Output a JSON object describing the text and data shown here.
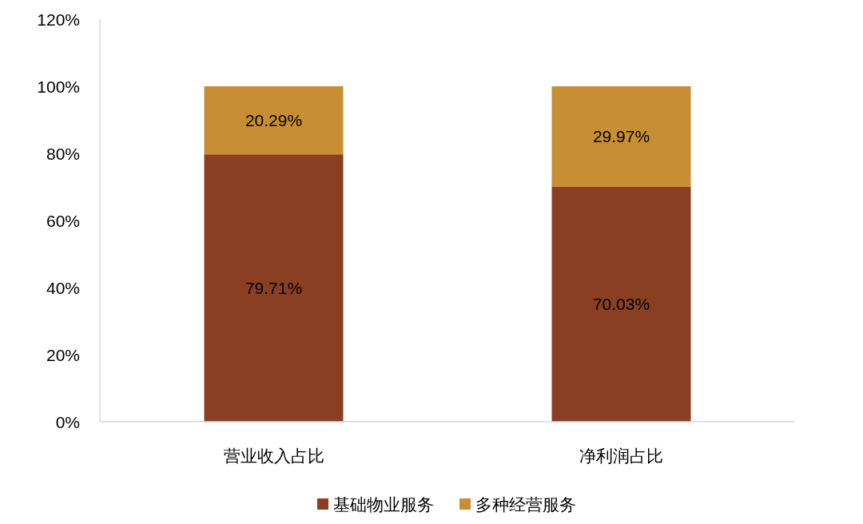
{
  "chart_data": {
    "type": "bar",
    "stacked": true,
    "categories": [
      "营业收入占比",
      "净利润占比"
    ],
    "series": [
      {
        "name": "基础物业服务",
        "color": "#8b3f22",
        "values": [
          79.71,
          70.03
        ],
        "value_labels": [
          "79.71%",
          "70.03%"
        ]
      },
      {
        "name": "多种经营服务",
        "color": "#c88e33",
        "values": [
          20.29,
          29.97
        ],
        "value_labels": [
          "20.29%",
          "29.97%"
        ]
      }
    ],
    "ylim": [
      0,
      120
    ],
    "yticks": [
      {
        "value": 0,
        "label": "0%"
      },
      {
        "value": 20,
        "label": "20%"
      },
      {
        "value": 40,
        "label": "40%"
      },
      {
        "value": 60,
        "label": "60%"
      },
      {
        "value": 80,
        "label": "80%"
      },
      {
        "value": 100,
        "label": "100%"
      },
      {
        "value": 120,
        "label": "120%"
      }
    ],
    "grid": false,
    "legend": "bottom"
  }
}
